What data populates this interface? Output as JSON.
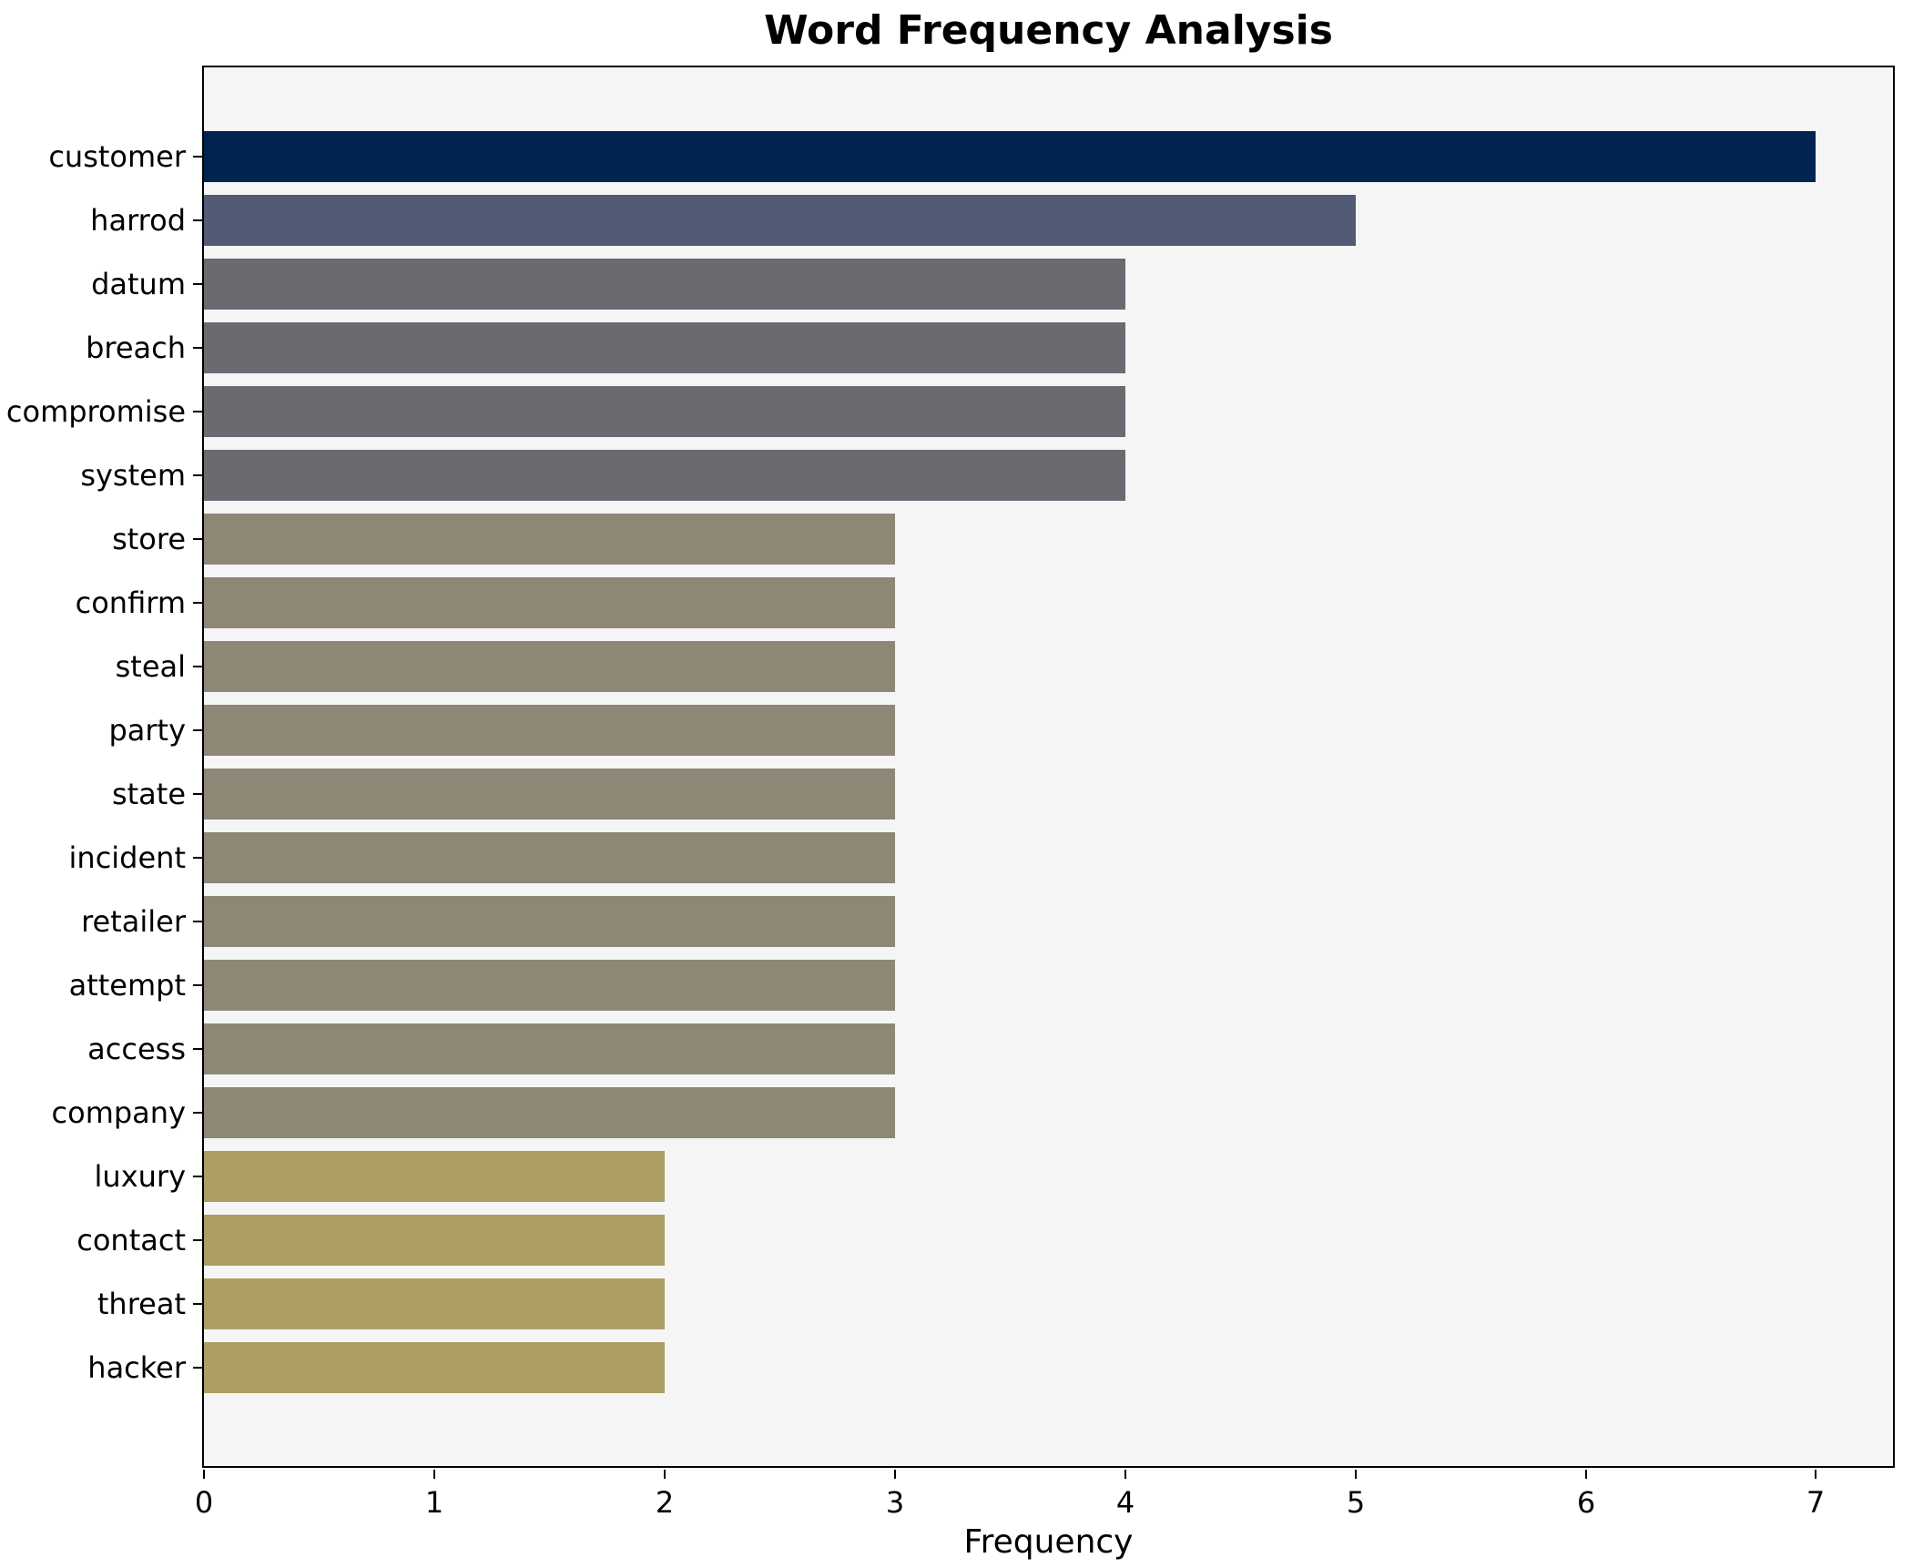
{
  "chart_data": {
    "type": "bar",
    "orientation": "horizontal",
    "title": "Word Frequency Analysis",
    "xlabel": "Frequency",
    "ylabel": "",
    "categories": [
      "customer",
      "harrod",
      "datum",
      "breach",
      "compromise",
      "system",
      "store",
      "confirm",
      "steal",
      "party",
      "state",
      "incident",
      "retailer",
      "attempt",
      "access",
      "company",
      "luxury",
      "contact",
      "threat",
      "hacker"
    ],
    "values": [
      7,
      5,
      4,
      4,
      4,
      4,
      3,
      3,
      3,
      3,
      3,
      3,
      3,
      3,
      3,
      3,
      2,
      2,
      2,
      2
    ],
    "bar_colors": [
      "#00234f",
      "#525a74",
      "#6b6a70",
      "#6b6a70",
      "#6b6a70",
      "#6b6a70",
      "#8d8776",
      "#8d8776",
      "#8d8776",
      "#8d8776",
      "#8d8776",
      "#8d8776",
      "#8d8776",
      "#8d8776",
      "#8d8776",
      "#8d8776",
      "#ad9e66",
      "#ad9e66",
      "#ad9e66",
      "#ad9e66"
    ],
    "x_ticks": [
      0,
      1,
      2,
      3,
      4,
      5,
      6,
      7
    ],
    "xlim": [
      0,
      7.35
    ],
    "grid": false,
    "legend": "none",
    "plot_background": "#f5f5f6",
    "frame_color": "#000000",
    "text_color": "#000000"
  }
}
